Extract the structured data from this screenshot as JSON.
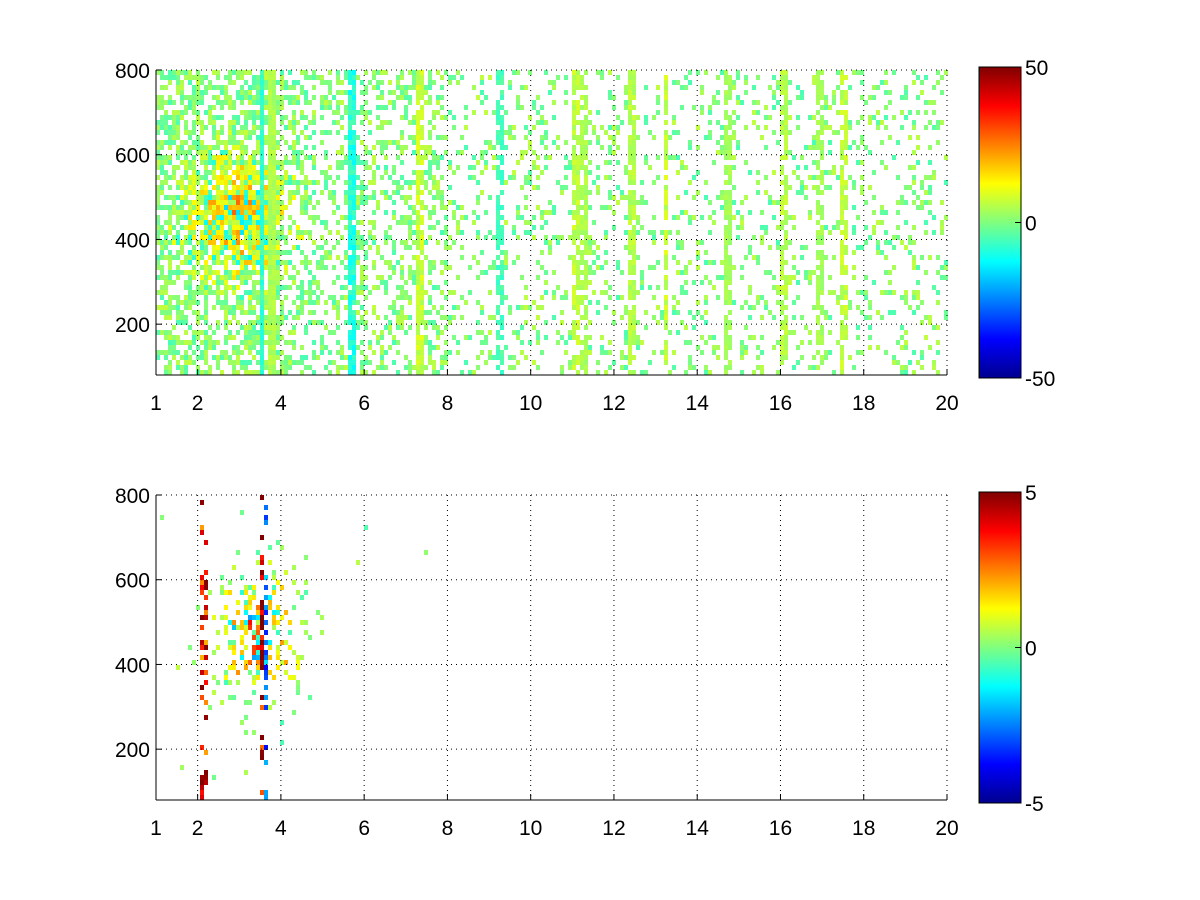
{
  "chart_data": [
    {
      "type": "heatmap",
      "title": "",
      "xlabel": "",
      "ylabel": "",
      "xlim": [
        1,
        20
      ],
      "ylim": [
        80,
        800
      ],
      "xticks": [
        1,
        2,
        4,
        6,
        8,
        10,
        12,
        14,
        16,
        18,
        20
      ],
      "yticks": [
        200,
        400,
        600,
        800
      ],
      "grid": true,
      "colormap": "jet",
      "clim": [
        -50,
        50
      ],
      "colorbar_ticks": [
        -50,
        0,
        50
      ],
      "colorbar_position": "right",
      "description_of_data": "scattered values mostly near 0; denser warm cluster around x≈2.5–3.5, y≈380–560; vertical streaks near x≈3.5, 5.7, 9.2, 11, 12.4, 13.2, 14.7, 16, 16.9, 17.5",
      "streaks": [
        {
          "x": 3.5,
          "value": -8
        },
        {
          "x": 3.7,
          "value": 5
        },
        {
          "x": 5.7,
          "value": -10
        },
        {
          "x": 7.3,
          "value": 8
        },
        {
          "x": 9.2,
          "value": -6
        },
        {
          "x": 11.0,
          "value": 7
        },
        {
          "x": 11.2,
          "value": 5
        },
        {
          "x": 12.4,
          "value": 6
        },
        {
          "x": 13.2,
          "value": 8
        },
        {
          "x": 14.7,
          "value": 4
        },
        {
          "x": 16.0,
          "value": 6
        },
        {
          "x": 16.9,
          "value": 4
        },
        {
          "x": 17.5,
          "value": 7
        }
      ],
      "hotspot": {
        "x": 2.9,
        "y": 460,
        "value": 20
      }
    },
    {
      "type": "heatmap",
      "title": "",
      "xlabel": "",
      "ylabel": "",
      "xlim": [
        1,
        20
      ],
      "ylim": [
        80,
        800
      ],
      "xticks": [
        1,
        2,
        4,
        6,
        8,
        10,
        12,
        14,
        16,
        18,
        20
      ],
      "yticks": [
        200,
        400,
        600,
        800
      ],
      "grid": true,
      "colormap": "jet",
      "clim": [
        -5,
        5
      ],
      "colorbar_ticks": [
        -5,
        0,
        5
      ],
      "colorbar_position": "right",
      "description_of_data": "sparse values concentrated at x≈2–5, y≈350–700; extreme values (±5) near x≈3.5; a few isolated points up to x≈7",
      "streaks": [
        {
          "x": 2.1,
          "value": 4
        },
        {
          "x": 3.5,
          "value": 5
        },
        {
          "x": 3.6,
          "value": -3
        }
      ],
      "hotspot": {
        "x": 3.4,
        "y": 480,
        "value": 3
      }
    }
  ]
}
